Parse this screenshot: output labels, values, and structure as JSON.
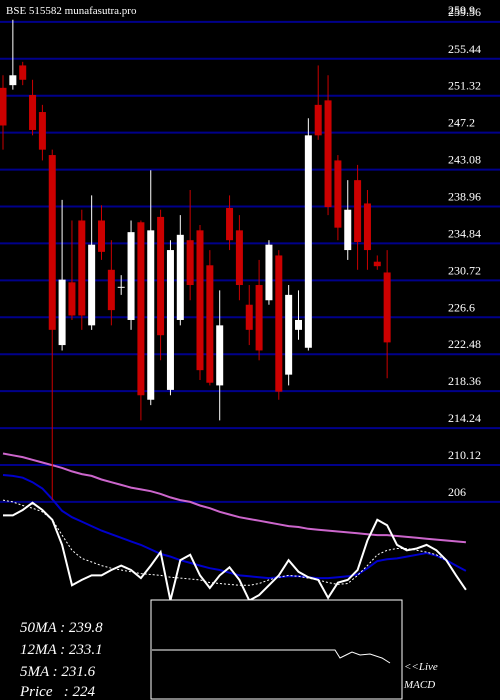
{
  "chart_data": {
    "type": "candlestick",
    "title": "BSE 515582 munafasutra.pro",
    "max_label": 259.9,
    "ylim": [
      183.9,
      262
    ],
    "yticks": [
      259.56,
      255.44,
      251.32,
      247.2,
      243.08,
      238.96,
      234.84,
      230.72,
      226.6,
      222.48,
      218.36,
      214.24,
      210.12,
      206
    ],
    "grid": true,
    "grid_color": "#00008b",
    "up_color": "#ffffff",
    "down_color": "#cc0000",
    "open": [
      252.2,
      252.5,
      254.7,
      251.4,
      249.5,
      244.7,
      223.5,
      230.5,
      237.4,
      225.7,
      237.4,
      231.9,
      230.0,
      226.3,
      237.2,
      217.4,
      237.8,
      218.5,
      226.3,
      235.2,
      236.3,
      232.4,
      219.0,
      238.8,
      236.3,
      228.0,
      230.2,
      228.5,
      233.5,
      220.2,
      225.2,
      223.2,
      250.3,
      250.8,
      244.1,
      234.1,
      241.9,
      239.3,
      232.8,
      231.6
    ],
    "high": [
      253.6,
      259.8,
      255.1,
      253.1,
      250.3,
      245.3,
      239.7,
      237.4,
      238.6,
      240.2,
      239.1,
      235.2,
      231.3,
      237.4,
      237.4,
      243.0,
      238.6,
      235.2,
      238.0,
      240.8,
      236.9,
      234.1,
      229.6,
      240.2,
      238.0,
      230.2,
      233.0,
      235.2,
      234.1,
      230.2,
      229.6,
      248.8,
      254.7,
      253.6,
      244.7,
      241.9,
      243.6,
      240.8,
      233.5,
      234.1
    ],
    "low": [
      245.3,
      252.0,
      252.5,
      246.9,
      244.1,
      206.2,
      222.9,
      226.3,
      225.2,
      225.2,
      233.0,
      225.7,
      229.1,
      225.2,
      215.1,
      216.8,
      221.8,
      217.9,
      225.7,
      228.5,
      219.6,
      219.0,
      215.1,
      234.1,
      228.5,
      223.5,
      221.8,
      228.0,
      217.4,
      219.0,
      224.1,
      222.9,
      246.4,
      238.0,
      235.2,
      233.0,
      231.9,
      231.9,
      231.9,
      219.8
    ],
    "close": [
      248.0,
      253.6,
      253.1,
      247.5,
      245.3,
      225.2,
      230.8,
      226.8,
      226.8,
      234.7,
      233.9,
      227.4,
      230.0,
      236.1,
      217.9,
      236.3,
      224.6,
      234.1,
      235.8,
      230.2,
      220.7,
      219.3,
      225.7,
      235.2,
      230.2,
      225.2,
      222.9,
      234.7,
      218.3,
      229.1,
      226.3,
      246.9,
      246.9,
      238.9,
      236.6,
      238.6,
      235.0,
      234.1,
      232.3,
      223.8
    ],
    "lines": [
      {
        "color": "#cc66cc",
        "dash": false,
        "values": [
          211.4,
          211.2,
          211.0,
          210.7,
          210.4,
          210.1,
          209.8,
          209.4,
          209.1,
          208.9,
          208.5,
          208.2,
          207.9,
          207.6,
          207.4,
          207.2,
          206.9,
          206.5,
          206.2,
          206.0,
          205.6,
          205.3,
          204.9,
          204.6,
          204.3,
          204.1,
          203.9,
          203.7,
          203.5,
          203.3,
          203.2,
          203.0,
          202.9,
          202.8,
          202.7,
          202.6,
          202.5,
          202.4,
          202.3,
          202.3,
          202.2,
          202.1,
          202.0,
          201.9,
          201.8,
          201.7,
          201.6,
          201.5
        ]
      },
      {
        "color": "#0000cc",
        "dash": false,
        "values": [
          209.0,
          208.9,
          208.7,
          208.2,
          207.5,
          206.3,
          205.0,
          204.3,
          203.8,
          203.3,
          202.8,
          202.4,
          202.0,
          201.6,
          201.2,
          200.7,
          200.2,
          199.9,
          199.5,
          199.2,
          198.9,
          198.6,
          198.4,
          198.1,
          197.8,
          197.7,
          197.6,
          197.5,
          197.6,
          197.7,
          197.7,
          197.6,
          197.5,
          197.5,
          197.6,
          197.7,
          197.9,
          198.6,
          199.4,
          199.6,
          199.7,
          199.9,
          200.1,
          200.3,
          200.0,
          199.5,
          198.9,
          198.3
        ]
      },
      {
        "color": "#ffffff",
        "dash": true,
        "values": [
          206.2,
          206.0,
          205.6,
          205.3,
          204.9,
          204.0,
          202.3,
          200.6,
          199.7,
          199.3,
          198.9,
          198.6,
          198.4,
          198.2,
          198.0,
          197.9,
          197.8,
          197.6,
          197.5,
          197.4,
          197.3,
          197.0,
          196.9,
          196.8,
          196.7,
          196.7,
          196.9,
          197.3,
          197.6,
          197.8,
          197.7,
          197.5,
          197.3,
          197.0,
          196.8,
          196.9,
          197.8,
          198.9,
          200.1,
          200.6,
          200.8,
          200.8,
          200.6,
          200.4,
          200.1,
          199.5,
          null,
          null
        ]
      },
      {
        "color": "#ffffff",
        "dash": false,
        "values": [
          204.5,
          204.5,
          205.1,
          205.9,
          205.1,
          204.0,
          201.2,
          196.7,
          197.3,
          197.8,
          197.8,
          198.4,
          198.9,
          198.4,
          197.5,
          198.9,
          200.4,
          195.0,
          199.5,
          200.1,
          197.8,
          196.4,
          197.8,
          198.7,
          197.3,
          195.0,
          195.6,
          196.7,
          197.8,
          199.5,
          198.2,
          197.6,
          197.3,
          195.3,
          197.0,
          197.3,
          198.4,
          201.7,
          204.0,
          203.4,
          201.2,
          200.6,
          200.8,
          201.2,
          200.6,
          199.5,
          197.8,
          196.2
        ]
      }
    ],
    "stats": [
      "50MA : 239.8",
      "12MA : 233.1",
      "5MA : 231.6",
      "Price   : 224"
    ],
    "macd_label": [
      "<<Live",
      "MACD"
    ]
  }
}
